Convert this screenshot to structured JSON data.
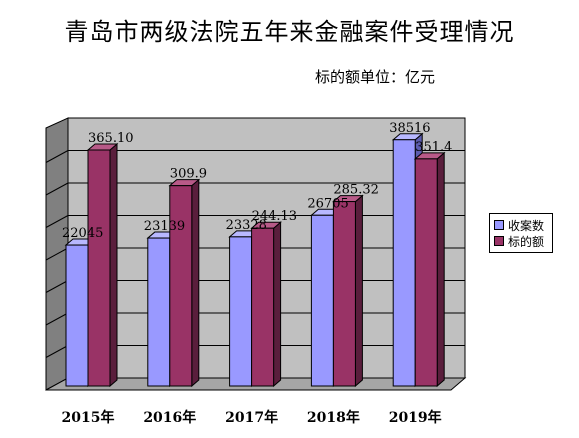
{
  "title": "青岛市两级法院五年来金融案件受理情况",
  "unit_note": "标的额单位：亿元",
  "colors": {
    "series_0_front": "#9999ff",
    "series_0_side": "#5c5cb0",
    "series_0_top": "#b8b8ff",
    "series_1_front": "#993366",
    "series_1_side": "#5a1e3c",
    "series_1_top": "#b85a88",
    "wall": "#c0c0c0",
    "wall_dark": "#808080",
    "floor": "#a6a6a6"
  },
  "chart_data": {
    "type": "bar",
    "title": "青岛市两级法院五年来金融案件受理情况",
    "categories": [
      "2015年",
      "2016年",
      "2017年",
      "2018年",
      "2019年"
    ],
    "series": [
      {
        "name": "收案数",
        "values": [
          22045,
          23139,
          23328,
          26705,
          38516
        ],
        "labels": [
          "22045",
          "23139",
          "23328",
          "26705",
          "38516"
        ]
      },
      {
        "name": "标的额",
        "values": [
          365.1,
          309.9,
          244.13,
          285.32,
          351.4
        ],
        "labels": [
          "365.10",
          "309.9",
          "244.13",
          "285.32",
          "351.4"
        ]
      }
    ],
    "grid": true,
    "legend": "right"
  }
}
